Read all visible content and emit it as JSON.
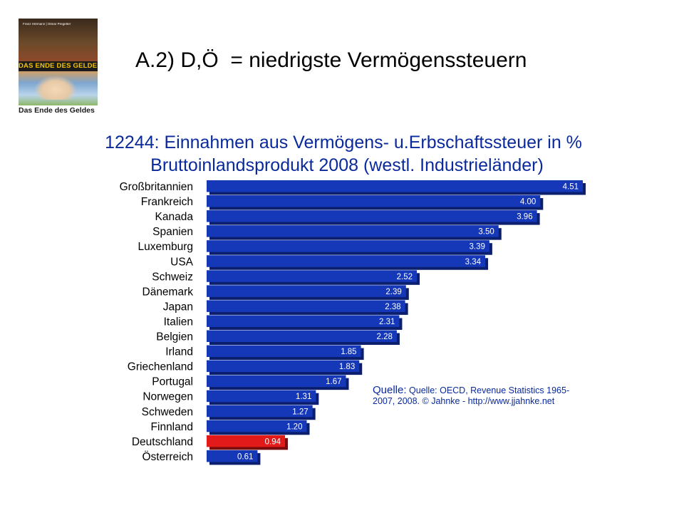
{
  "slide": {
    "title": "A.2) D,Ö  = niedrigste Vermögenssteuern"
  },
  "book": {
    "authors": "Franz Hörmann | Otmar Pregetter",
    "banner": "DAS ENDE DES GELDES",
    "caption": "Das Ende des Geldes"
  },
  "colors": {
    "bar": "#1538b8",
    "bar_dark": "#0b1f6e",
    "highlight": "#e21a1a",
    "highlight_dark": "#7a0c0c",
    "title_text": "#0a2a9c"
  },
  "source": {
    "heading": "Quelle:",
    "text": "Quelle: OECD, Revenue Statistics 1965-2007, 2008. © Jahnke - http://www.jjahnke.net"
  },
  "chart_data": {
    "type": "bar",
    "orientation": "horizontal",
    "title": "12244: Einnahmen aus Vermögens- u.Erbschaftssteuer in %",
    "subtitle": "Bruttoinlandsprodukt 2008  (westl. Industrieländer)",
    "categories": [
      "Großbritannien",
      "Frankreich",
      "Kanada",
      "Spanien",
      "Luxemburg",
      "USA",
      "Schweiz",
      "Dänemark",
      "Japan",
      "Italien",
      "Belgien",
      "Irland",
      "Griechenland",
      "Portugal",
      "Norwegen",
      "Schweden",
      "Finnland",
      "Deutschland",
      "Österreich"
    ],
    "values": [
      4.51,
      4.0,
      3.96,
      3.5,
      3.39,
      3.34,
      2.52,
      2.39,
      2.38,
      2.31,
      2.28,
      1.85,
      1.83,
      1.67,
      1.31,
      1.27,
      1.2,
      0.94,
      0.61
    ],
    "value_labels": [
      "4.51",
      "4.00",
      "3.96",
      "3.50",
      "3.39",
      "3.34",
      "2.52",
      "2.39",
      "2.38",
      "2.31",
      "2.28",
      "1.85",
      "1.83",
      "1.67",
      "1.31",
      "1.27",
      "1.20",
      "0.94",
      "0.61"
    ],
    "highlight": [
      "Deutschland"
    ],
    "xlim": [
      0,
      4.51
    ],
    "grid": false,
    "legend": "none"
  }
}
